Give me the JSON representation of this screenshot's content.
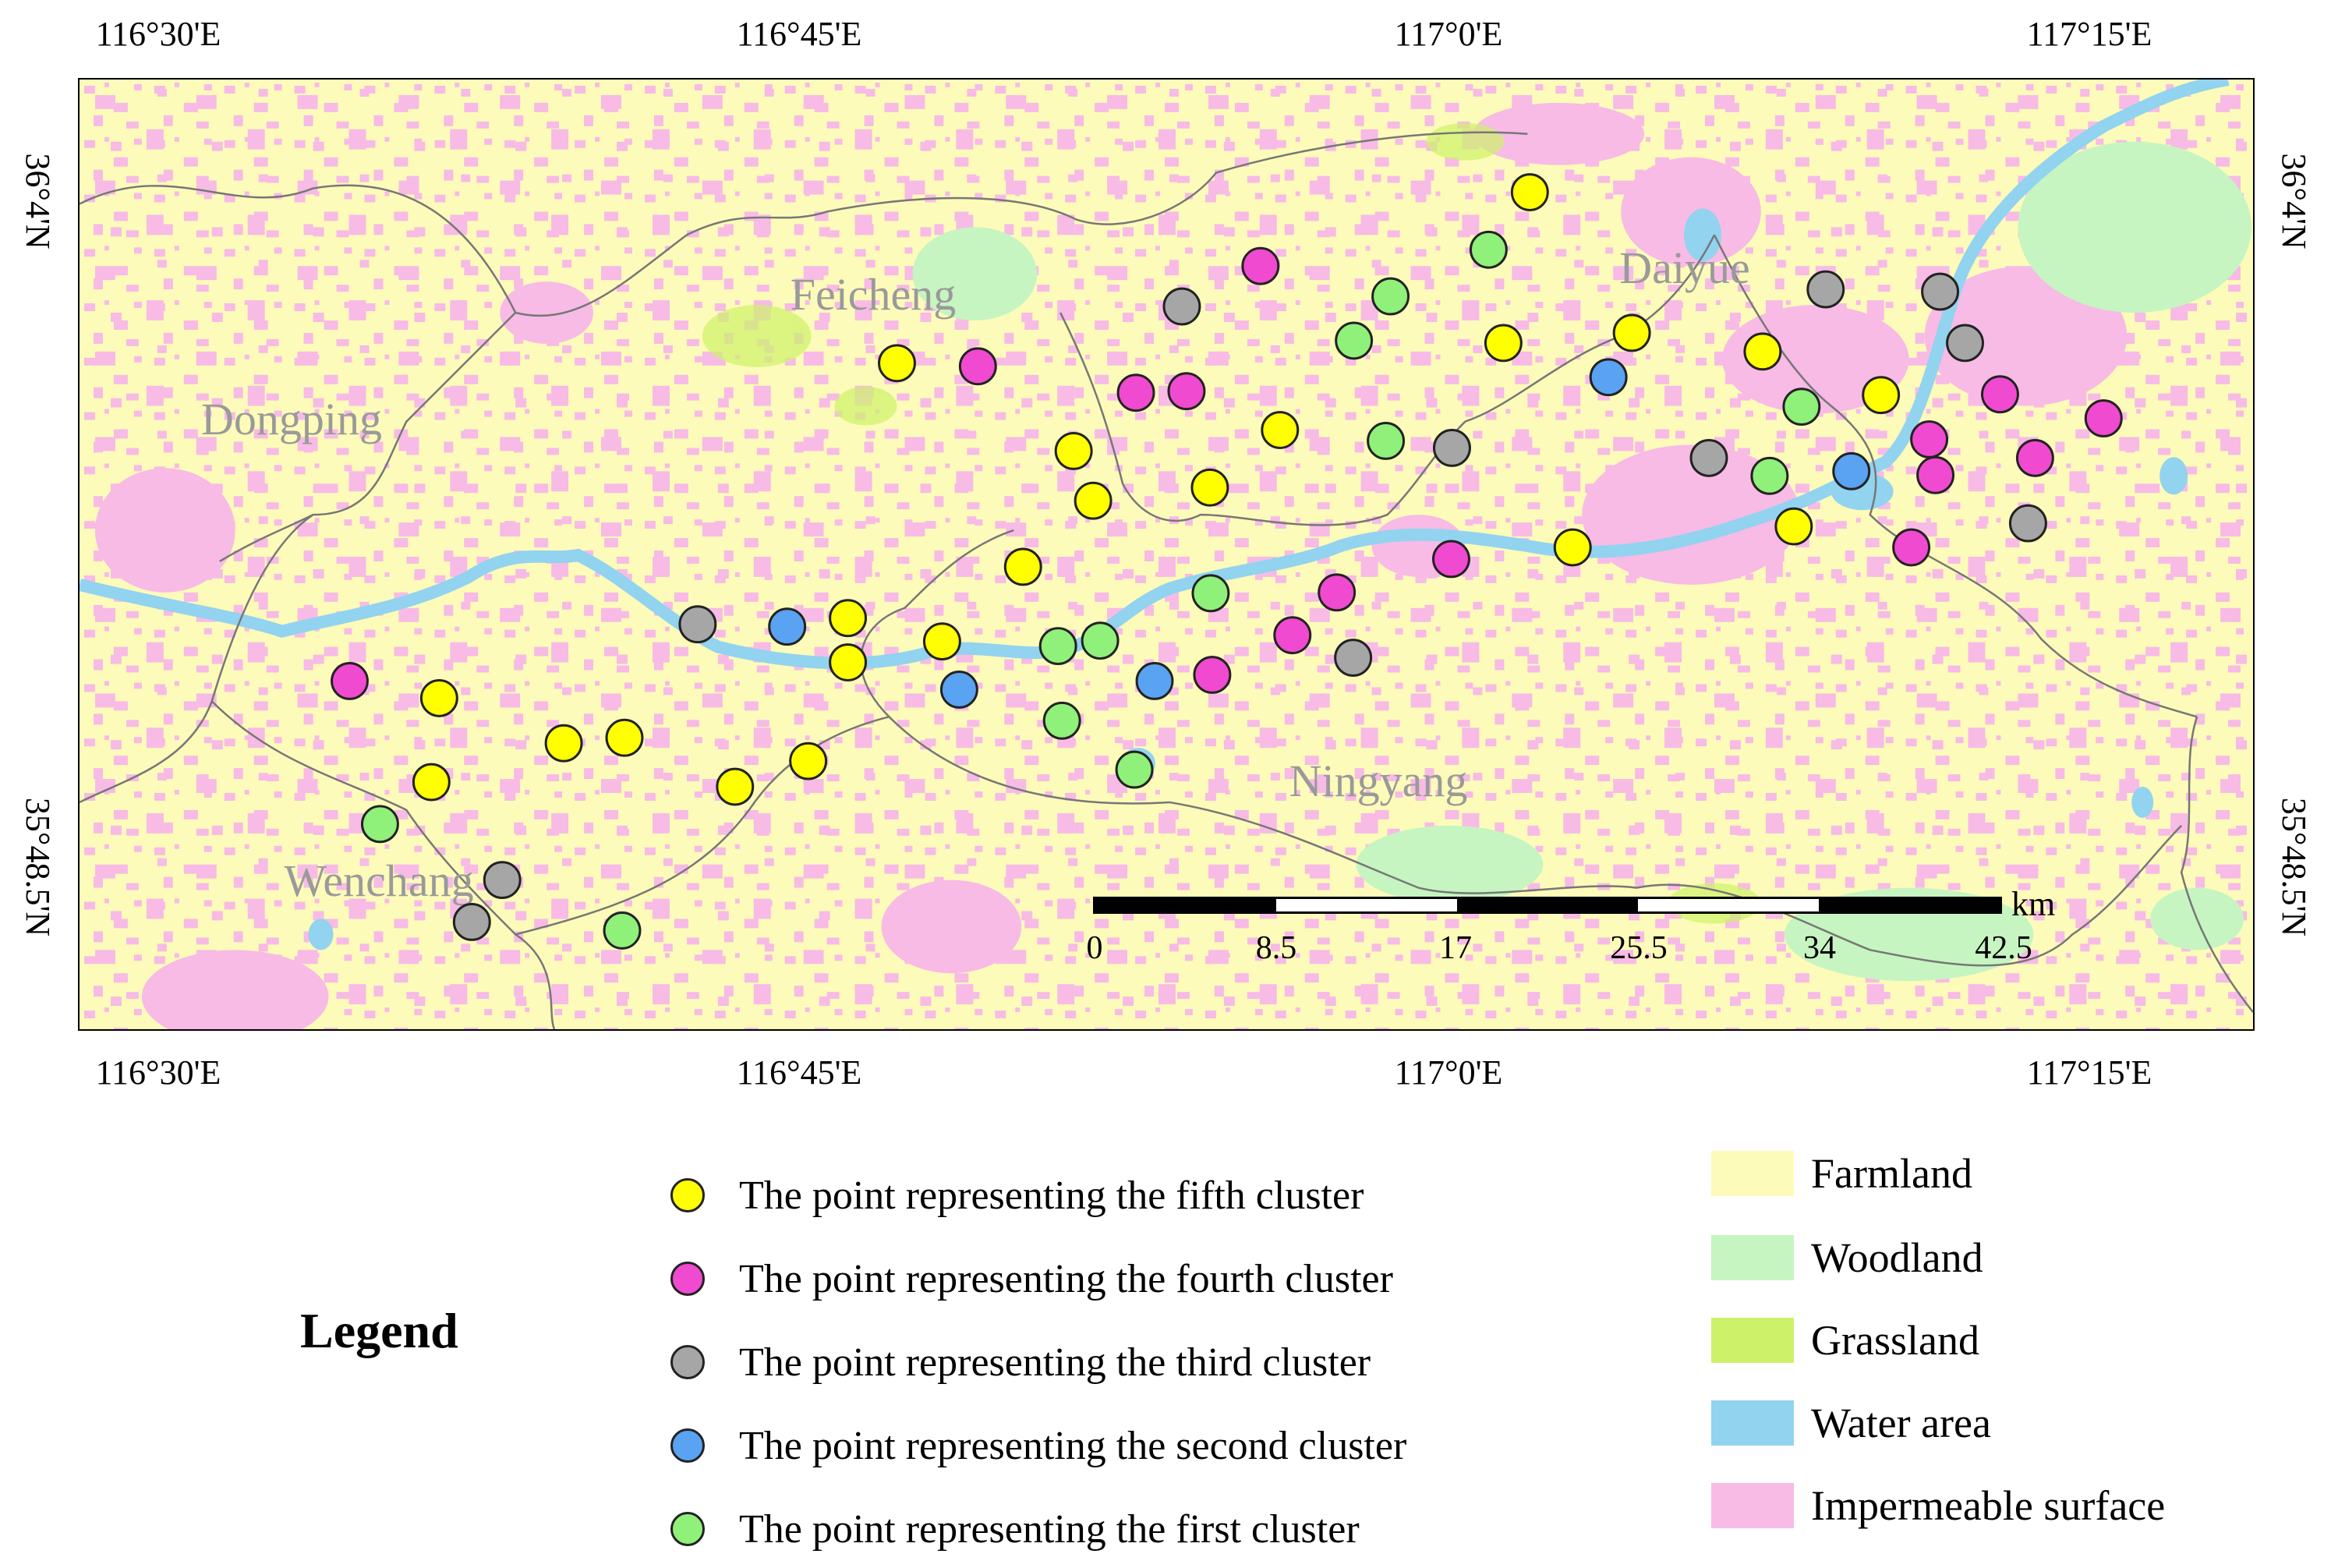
{
  "map": {
    "top_longitudes": [
      "116°30'E",
      "116°45'E",
      "117°0'E",
      "117°15'E"
    ],
    "bottom_longitudes": [
      "116°30'E",
      "116°45'E",
      "117°0'E",
      "117°15'E"
    ],
    "left_latitudes": [
      "36°4'N",
      "35°48.5'N"
    ],
    "right_latitudes": [
      "36°4'N",
      "35°48.5'N"
    ],
    "place_names": [
      "Dongping",
      "Feicheng",
      "Daiyue",
      "Ningyang",
      "Wenchang"
    ],
    "scale_bar": {
      "unit": "km",
      "ticks": [
        "0",
        "8.5",
        "17",
        "25.5",
        "34",
        "42.5"
      ]
    },
    "colors": {
      "farmland": "#fdfbb9",
      "woodland": "#c6f5c1",
      "grassland": "#cdf26a",
      "water": "#92d3ef",
      "impermeable": "#f7bbe6",
      "fifth": "#ffff00",
      "fourth": "#f04ad0",
      "third": "#a6a6a6",
      "second": "#5aa2f2",
      "first": "#8ff07a"
    },
    "points": {
      "fifth": [
        [
          1150,
          465
        ],
        [
          1377,
          578
        ],
        [
          1402,
          642
        ],
        [
          1312,
          727
        ],
        [
          1552,
          625
        ],
        [
          1642,
          551
        ],
        [
          1087,
          793
        ],
        [
          1087,
          850
        ],
        [
          1208,
          823
        ],
        [
          562,
          896
        ],
        [
          552,
          1004
        ],
        [
          722,
          954
        ],
        [
          800,
          947
        ],
        [
          1036,
          977
        ],
        [
          942,
          1010
        ],
        [
          1963,
          245
        ],
        [
          1929,
          439
        ],
        [
          2094,
          426
        ],
        [
          2018,
          702
        ],
        [
          2262,
          450
        ],
        [
          2302,
          675
        ],
        [
          2414,
          506
        ]
      ],
      "fourth": [
        [
          1254,
          469
        ],
        [
          1457,
          503
        ],
        [
          1522,
          501
        ],
        [
          1617,
          340
        ],
        [
          1862,
          717
        ],
        [
          1715,
          760
        ],
        [
          1658,
          815
        ],
        [
          1555,
          866
        ],
        [
          447,
          874
        ],
        [
          2567,
          505
        ],
        [
          2476,
          563
        ],
        [
          2484,
          609
        ],
        [
          2612,
          587
        ],
        [
          2700,
          536
        ],
        [
          2453,
          702
        ]
      ],
      "third": [
        [
          1516,
          392
        ],
        [
          1863,
          574
        ],
        [
          1736,
          844
        ],
        [
          894,
          801
        ],
        [
          643,
          1130
        ],
        [
          604,
          1184
        ],
        [
          2193,
          587
        ],
        [
          2343,
          370
        ],
        [
          2490,
          373
        ],
        [
          2522,
          439
        ],
        [
          2603,
          671
        ]
      ],
      "second": [
        [
          1009,
          804
        ],
        [
          1230,
          885
        ],
        [
          1481,
          874
        ],
        [
          2064,
          483
        ],
        [
          2376,
          604
        ]
      ],
      "first": [
        [
          1910,
          319
        ],
        [
          1784,
          379
        ],
        [
          1737,
          436
        ],
        [
          1778,
          565
        ],
        [
          1553,
          761
        ],
        [
          1357,
          829
        ],
        [
          1411,
          822
        ],
        [
          1362,
          925
        ],
        [
          1455,
          988
        ],
        [
          486,
          1058
        ],
        [
          797,
          1195
        ],
        [
          2312,
          521
        ],
        [
          2271,
          610
        ]
      ]
    }
  },
  "legend": {
    "title": "Legend",
    "clusters": [
      {
        "label": "The point representing the fifth cluster",
        "color": "#ffff00"
      },
      {
        "label": "The point representing the fourth cluster",
        "color": "#f04ad0"
      },
      {
        "label": "The point representing the third cluster",
        "color": "#a6a6a6"
      },
      {
        "label": "The point representing the second cluster",
        "color": "#5aa2f2"
      },
      {
        "label": "The point representing the first cluster",
        "color": "#8ff07a"
      }
    ],
    "land_cover": [
      {
        "label": "Farmland",
        "color": "#fdfbb9"
      },
      {
        "label": "Woodland",
        "color": "#c6f5c1"
      },
      {
        "label": "Grassland",
        "color": "#cdf26a"
      },
      {
        "label": "Water area",
        "color": "#92d3ef"
      },
      {
        "label": "Impermeable surface",
        "color": "#f7bbe6"
      }
    ]
  }
}
